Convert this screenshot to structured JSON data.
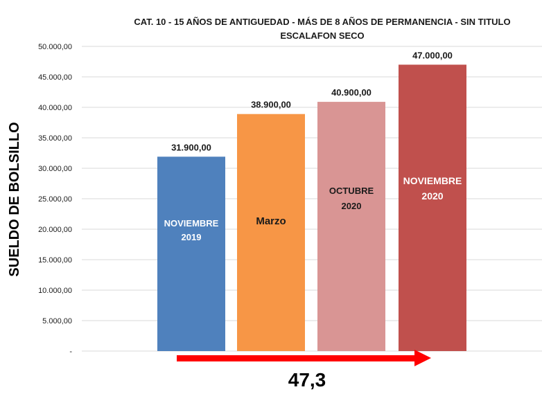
{
  "chart_data": {
    "type": "bar",
    "title": "CAT. 10 - 15 AÑOS DE ANTIGUEDAD - MÁS DE 8 AÑOS DE PERMANENCIA - SIN TITULO",
    "subtitle": "ESCALAFON SECO",
    "ylabel": "SUELDO DE BOLSILLO",
    "xlabel": "",
    "ylim": [
      0,
      50000
    ],
    "yticks": [
      "-",
      "5.000,00",
      "10.000,00",
      "15.000,00",
      "20.000,00",
      "25.000,00",
      "30.000,00",
      "35.000,00",
      "40.000,00",
      "45.000,00",
      "50.000,00"
    ],
    "grid": true,
    "categories": [
      {
        "line1": "NOVIEMBRE",
        "line2": "2019"
      },
      {
        "line1": "Marzo",
        "line2": ""
      },
      {
        "line1": "OCTUBRE",
        "line2": "2020"
      },
      {
        "line1": "NOVIEMBRE",
        "line2": "2020"
      }
    ],
    "values": [
      31900,
      38900,
      40900,
      47000
    ],
    "data_labels": [
      "31.900,00",
      "38.900,00",
      "40.900,00",
      "47.000,00"
    ],
    "colors": [
      "#4f81bd",
      "#f79646",
      "#d99594",
      "#c0504d"
    ],
    "label_colors": [
      "#ffffff",
      "#1a1a1a",
      "#1a1a1a",
      "#ffffff"
    ],
    "annotation": {
      "text": "47,3",
      "arrow_color": "#ff0000"
    }
  }
}
